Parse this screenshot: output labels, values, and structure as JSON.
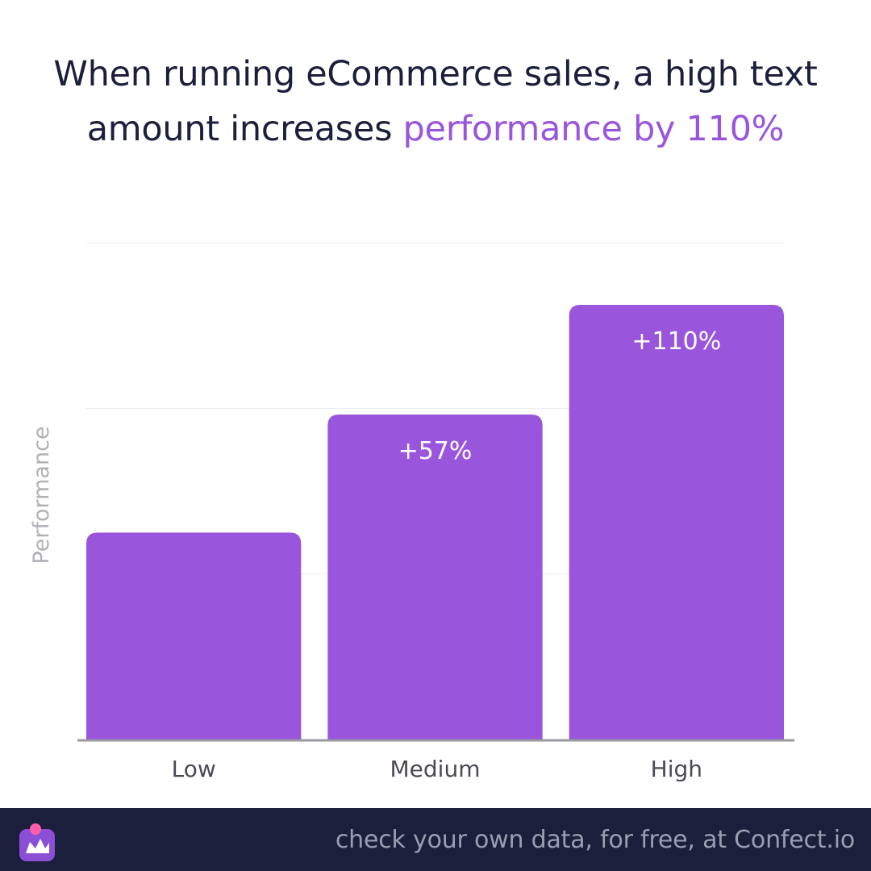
{
  "title": {
    "line1": "When running eCommerce sales, a high text",
    "line2_plain": "amount increases ",
    "line2_accent": "performance by 110%"
  },
  "chart_data": {
    "type": "bar",
    "categories": [
      "Low",
      "Medium",
      "High"
    ],
    "values": [
      100,
      157,
      210
    ],
    "data_labels": [
      "",
      "+57%",
      "+110%"
    ],
    "title": "",
    "xlabel": "",
    "ylabel": "Performance",
    "ylim": [
      0,
      240
    ],
    "grid": true,
    "bar_color": "#9a55dd"
  },
  "footer": {
    "text": "check your own data, for free, at Confect.io",
    "logo_icon": "confect-logo-icon",
    "background": "#1c1f3b"
  },
  "colors": {
    "accent": "#9a55dd",
    "title": "#1c1f3b"
  }
}
